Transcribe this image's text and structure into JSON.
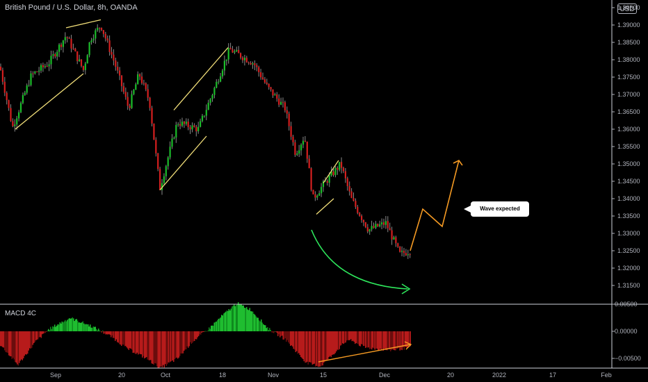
{
  "header": {
    "title": "British Pound / U.S. Dollar, 8h, OANDA",
    "currency": "USD"
  },
  "macd": {
    "label": "MACD 4C"
  },
  "callout": {
    "text": "Wave expected"
  },
  "colors": {
    "up": "#1bbd2a",
    "down": "#d41f1f",
    "wick": "#8a8a8a",
    "trend_line": "#f3e07a",
    "green_arc": "#2ee85c",
    "orange": "#f59a23",
    "axis_text": "#b2b5be",
    "separator": "#d1d4dc"
  },
  "chart_data": {
    "type": "candlestick",
    "title": "British Pound / U.S. Dollar, 8h, OANDA",
    "price_axis": {
      "ticks": [
        "1.39500",
        "1.39000",
        "1.38500",
        "1.38000",
        "1.37500",
        "1.37000",
        "1.36500",
        "1.36000",
        "1.35500",
        "1.35000",
        "1.34500",
        "1.34000",
        "1.33500",
        "1.33000",
        "1.32500",
        "1.32000",
        "1.31500"
      ],
      "range": [
        1.313,
        1.396
      ]
    },
    "macd_axis": {
      "ticks": [
        "0.00500",
        "0.00000",
        "−0.00500"
      ],
      "range": [
        -0.0068,
        0.0055
      ]
    },
    "time_axis": [
      "Sep",
      "20",
      "Oct",
      "18",
      "Nov",
      "15",
      "Dec",
      "20",
      "2022",
      "17",
      "Feb"
    ],
    "price_path": [
      [
        0,
        1.378
      ],
      [
        18,
        1.3605
      ],
      [
        45,
        1.3755
      ],
      [
        70,
        1.379
      ],
      [
        95,
        1.387
      ],
      [
        120,
        1.377
      ],
      [
        130,
        1.386
      ],
      [
        145,
        1.39
      ],
      [
        165,
        1.379
      ],
      [
        185,
        1.366
      ],
      [
        200,
        1.376
      ],
      [
        215,
        1.368
      ],
      [
        230,
        1.343
      ],
      [
        255,
        1.362
      ],
      [
        285,
        1.36
      ],
      [
        305,
        1.37
      ],
      [
        330,
        1.383
      ],
      [
        365,
        1.379
      ],
      [
        385,
        1.372
      ],
      [
        410,
        1.366
      ],
      [
        425,
        1.353
      ],
      [
        438,
        1.358
      ],
      [
        450,
        1.34
      ],
      [
        465,
        1.344
      ],
      [
        490,
        1.35
      ],
      [
        505,
        1.34
      ],
      [
        530,
        1.331
      ],
      [
        555,
        1.333
      ],
      [
        575,
        1.324
      ],
      [
        590,
        1.325
      ]
    ],
    "forecast_path": [
      [
        590,
        1.325
      ],
      [
        608,
        1.337
      ],
      [
        636,
        1.332
      ],
      [
        660,
        1.351
      ]
    ],
    "trend_lines": [
      [
        [
          22,
          1.36
        ],
        [
          120,
          1.376
        ]
      ],
      [
        [
          95,
          1.3892
        ],
        [
          145,
          1.3915
        ]
      ],
      [
        [
          230,
          1.3425
        ],
        [
          297,
          1.358
        ]
      ],
      [
        [
          250,
          1.3655
        ],
        [
          328,
          1.3835
        ]
      ],
      [
        [
          455,
          1.3355
        ],
        [
          480,
          1.34
        ]
      ],
      [
        [
          465,
          1.3445
        ],
        [
          487,
          1.351
        ]
      ]
    ],
    "macd_histogram_path": [
      [
        0,
        -0.0025
      ],
      [
        25,
        -0.0062
      ],
      [
        50,
        -0.002
      ],
      [
        70,
        0.0004
      ],
      [
        100,
        0.0025
      ],
      [
        130,
        0.001
      ],
      [
        160,
        -0.001
      ],
      [
        180,
        -0.003
      ],
      [
        210,
        -0.005
      ],
      [
        230,
        -0.0068
      ],
      [
        255,
        -0.005
      ],
      [
        275,
        -0.002
      ],
      [
        300,
        0.0005
      ],
      [
        320,
        0.003
      ],
      [
        340,
        0.0052
      ],
      [
        360,
        0.004
      ],
      [
        385,
        0.0005
      ],
      [
        410,
        -0.0015
      ],
      [
        440,
        -0.0058
      ],
      [
        460,
        -0.0065
      ],
      [
        480,
        -0.004
      ],
      [
        500,
        -0.0015
      ],
      [
        525,
        -0.003
      ],
      [
        560,
        -0.0035
      ],
      [
        590,
        -0.003
      ]
    ]
  }
}
